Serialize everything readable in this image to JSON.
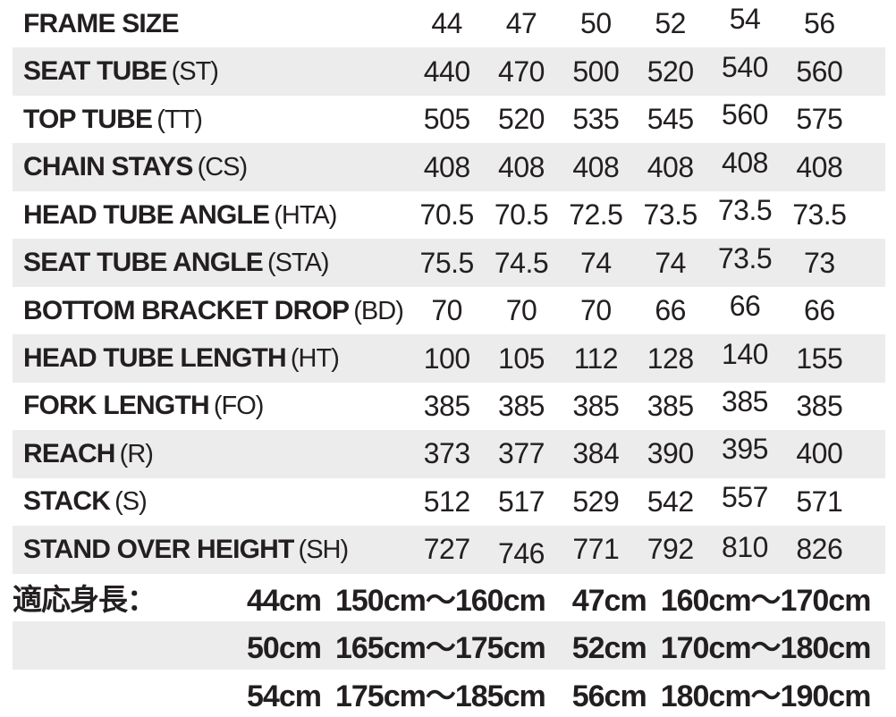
{
  "chart_data": {
    "type": "table",
    "title": "Bicycle frame geometry specifications",
    "columns": [
      "44",
      "47",
      "50",
      "52",
      "54",
      "56"
    ],
    "rows": [
      {
        "label": "FRAME SIZE",
        "abbr": "",
        "values": [
          "44",
          "47",
          "50",
          "52",
          "54",
          "56"
        ]
      },
      {
        "label": "SEAT TUBE",
        "abbr": "(ST)",
        "values": [
          "440",
          "470",
          "500",
          "520",
          "540",
          "560"
        ]
      },
      {
        "label": "TOP TUBE",
        "abbr": "(TT)",
        "values": [
          "505",
          "520",
          "535",
          "545",
          "560",
          "575"
        ]
      },
      {
        "label": "CHAIN STAYS",
        "abbr": "(CS)",
        "values": [
          "408",
          "408",
          "408",
          "408",
          "408",
          "408"
        ]
      },
      {
        "label": "HEAD TUBE ANGLE",
        "abbr": "(HTA)",
        "values": [
          "70.5",
          "70.5",
          "72.5",
          "73.5",
          "73.5",
          "73.5"
        ]
      },
      {
        "label": "SEAT TUBE ANGLE",
        "abbr": "(STA)",
        "values": [
          "75.5",
          "74.5",
          "74",
          "74",
          "73.5",
          "73"
        ]
      },
      {
        "label": "BOTTOM BRACKET DROP",
        "abbr": "(BD)",
        "values": [
          "70",
          "70",
          "70",
          "66",
          "66",
          "66"
        ]
      },
      {
        "label": "HEAD TUBE LENGTH",
        "abbr": "(HT)",
        "values": [
          "100",
          "105",
          "112",
          "128",
          "140",
          "155"
        ]
      },
      {
        "label": "FORK LENGTH",
        "abbr": "(FO)",
        "values": [
          "385",
          "385",
          "385",
          "385",
          "385",
          "385"
        ]
      },
      {
        "label": "REACH",
        "abbr": "(R)",
        "values": [
          "373",
          "377",
          "384",
          "390",
          "395",
          "400"
        ]
      },
      {
        "label": "STACK",
        "abbr": "(S)",
        "values": [
          "512",
          "517",
          "529",
          "542",
          "557",
          "571"
        ]
      },
      {
        "label": "STAND OVER HEIGHT",
        "abbr": "(SH)",
        "values": [
          "727",
          "746",
          "771",
          "792",
          "810",
          "826"
        ]
      }
    ],
    "layout": {
      "stripe_rows": "alternating starting with second row",
      "legend_position": "none",
      "grid": "off"
    }
  },
  "fit_guide": {
    "label": "適応身長：",
    "lines": [
      {
        "pairs": [
          {
            "size": "44cm",
            "range": "150cm〜160cm"
          },
          {
            "size": "47cm",
            "range": "160cm〜170cm"
          }
        ]
      },
      {
        "pairs": [
          {
            "size": "50cm",
            "range": "165cm〜175cm"
          },
          {
            "size": "52cm",
            "range": "170cm〜180cm"
          }
        ]
      },
      {
        "pairs": [
          {
            "size": "54cm",
            "range": "175cm〜185cm"
          },
          {
            "size": "56cm",
            "range": "180cm〜190cm"
          }
        ]
      }
    ]
  },
  "colors": {
    "background": "#ffffff",
    "stripe": "#ececec",
    "text": "#231f20"
  }
}
